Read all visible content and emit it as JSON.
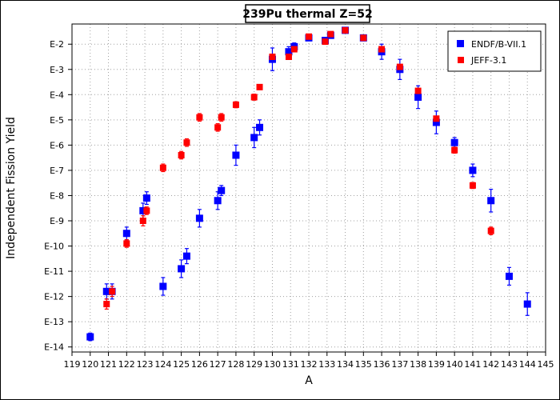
{
  "chart_data": {
    "type": "scatter",
    "title": "239Pu thermal Z=52",
    "xlabel": "A",
    "ylabel": "Independent Fission Yield",
    "xlim": [
      119,
      145
    ],
    "ylim": [
      -14.2,
      -1.2
    ],
    "y_scale": "log",
    "x_ticks": [
      119,
      120,
      121,
      122,
      123,
      124,
      125,
      126,
      127,
      128,
      129,
      130,
      131,
      132,
      133,
      134,
      135,
      136,
      137,
      138,
      139,
      140,
      141,
      142,
      143,
      144,
      145
    ],
    "y_ticks": [
      {
        "value": -14,
        "label": "E-14"
      },
      {
        "value": -13,
        "label": "E-13"
      },
      {
        "value": -12,
        "label": "E-12"
      },
      {
        "value": -11,
        "label": "E-11"
      },
      {
        "value": -10,
        "label": "E-10"
      },
      {
        "value": -9,
        "label": "E-9"
      },
      {
        "value": -8,
        "label": "E-8"
      },
      {
        "value": -7,
        "label": "E-7"
      },
      {
        "value": -6,
        "label": "E-6"
      },
      {
        "value": -5,
        "label": "E-5"
      },
      {
        "value": -4,
        "label": "E-4"
      },
      {
        "value": -3,
        "label": "E-3"
      },
      {
        "value": -2,
        "label": "E-2"
      }
    ],
    "grid": true,
    "legend_position": "top-right",
    "series": [
      {
        "name": "ENDF/B-VII.1",
        "color": "#0000ff",
        "marker": "square",
        "points": [
          {
            "x": 120.0,
            "y": -13.6,
            "err": 0.15
          },
          {
            "x": 120.9,
            "y": -11.8,
            "err": 0.3
          },
          {
            "x": 121.2,
            "y": -11.8,
            "err": 0.3
          },
          {
            "x": 122.0,
            "y": -9.5,
            "err": 0.25
          },
          {
            "x": 122.9,
            "y": -8.6,
            "err": 0.3
          },
          {
            "x": 123.1,
            "y": -8.1,
            "err": 0.25
          },
          {
            "x": 124.0,
            "y": -11.6,
            "err": 0.35
          },
          {
            "x": 125.0,
            "y": -10.9,
            "err": 0.35
          },
          {
            "x": 125.3,
            "y": -10.4,
            "err": 0.3
          },
          {
            "x": 126.0,
            "y": -8.9,
            "err": 0.35
          },
          {
            "x": 127.0,
            "y": -8.2,
            "err": 0.35
          },
          {
            "x": 127.2,
            "y": -7.8,
            "err": 0.2
          },
          {
            "x": 128.0,
            "y": -6.4,
            "err": 0.4
          },
          {
            "x": 129.0,
            "y": -5.7,
            "err": 0.4
          },
          {
            "x": 129.3,
            "y": -5.3,
            "err": 0.3
          },
          {
            "x": 130.0,
            "y": -2.6,
            "err": 0.45
          },
          {
            "x": 130.9,
            "y": -2.3,
            "err": 0.2
          },
          {
            "x": 131.2,
            "y": -2.1,
            "err": 0.15
          },
          {
            "x": 132.0,
            "y": -1.75,
            "err": 0.08
          },
          {
            "x": 132.9,
            "y": -1.85,
            "err": 0.1
          },
          {
            "x": 133.2,
            "y": -1.65,
            "err": 0.06
          },
          {
            "x": 134.0,
            "y": -1.45,
            "err": 0.05
          },
          {
            "x": 135.0,
            "y": -1.75,
            "err": 0.05
          },
          {
            "x": 136.0,
            "y": -2.3,
            "err": 0.3
          },
          {
            "x": 137.0,
            "y": -3.0,
            "err": 0.4
          },
          {
            "x": 138.0,
            "y": -4.1,
            "err": 0.45
          },
          {
            "x": 139.0,
            "y": -5.1,
            "err": 0.45
          },
          {
            "x": 140.0,
            "y": -5.9,
            "err": 0.2
          },
          {
            "x": 141.0,
            "y": -7.0,
            "err": 0.25
          },
          {
            "x": 142.0,
            "y": -8.2,
            "err": 0.45
          },
          {
            "x": 143.0,
            "y": -11.2,
            "err": 0.35
          },
          {
            "x": 144.0,
            "y": -12.3,
            "err": 0.45
          }
        ]
      },
      {
        "name": "JEFF-3.1",
        "color": "#ff0000",
        "marker": "square",
        "points": [
          {
            "x": 120.9,
            "y": -12.3,
            "err": 0.2
          },
          {
            "x": 121.2,
            "y": -11.8,
            "err": 0.2
          },
          {
            "x": 122.0,
            "y": -9.9,
            "err": 0.15
          },
          {
            "x": 122.9,
            "y": -9.0,
            "err": 0.2
          },
          {
            "x": 123.1,
            "y": -8.6,
            "err": 0.15
          },
          {
            "x": 124.0,
            "y": -6.9,
            "err": 0.15
          },
          {
            "x": 125.0,
            "y": -6.4,
            "err": 0.15
          },
          {
            "x": 125.3,
            "y": -5.9,
            "err": 0.15
          },
          {
            "x": 126.0,
            "y": -4.9,
            "err": 0.15
          },
          {
            "x": 127.0,
            "y": -5.3,
            "err": 0.15
          },
          {
            "x": 127.2,
            "y": -4.9,
            "err": 0.15
          },
          {
            "x": 128.0,
            "y": -4.4,
            "err": 0.12
          },
          {
            "x": 129.0,
            "y": -4.1,
            "err": 0.12
          },
          {
            "x": 129.3,
            "y": -3.7,
            "err": 0.1
          },
          {
            "x": 130.0,
            "y": -2.5,
            "err": 0.1
          },
          {
            "x": 130.9,
            "y": -2.5,
            "err": 0.1
          },
          {
            "x": 131.2,
            "y": -2.2,
            "err": 0.08
          },
          {
            "x": 132.0,
            "y": -1.7,
            "err": 0.05
          },
          {
            "x": 132.9,
            "y": -1.9,
            "err": 0.05
          },
          {
            "x": 133.2,
            "y": -1.6,
            "err": 0.05
          },
          {
            "x": 134.0,
            "y": -1.45,
            "err": 0.04
          },
          {
            "x": 135.0,
            "y": -1.75,
            "err": 0.04
          },
          {
            "x": 136.0,
            "y": -2.2,
            "err": 0.06
          },
          {
            "x": 137.0,
            "y": -2.9,
            "err": 0.08
          },
          {
            "x": 138.0,
            "y": -3.85,
            "err": 0.1
          },
          {
            "x": 139.0,
            "y": -4.95,
            "err": 0.1
          },
          {
            "x": 140.0,
            "y": -6.2,
            "err": 0.12
          },
          {
            "x": 141.0,
            "y": -7.6,
            "err": 0.12
          },
          {
            "x": 142.0,
            "y": -9.4,
            "err": 0.15
          }
        ]
      }
    ]
  }
}
